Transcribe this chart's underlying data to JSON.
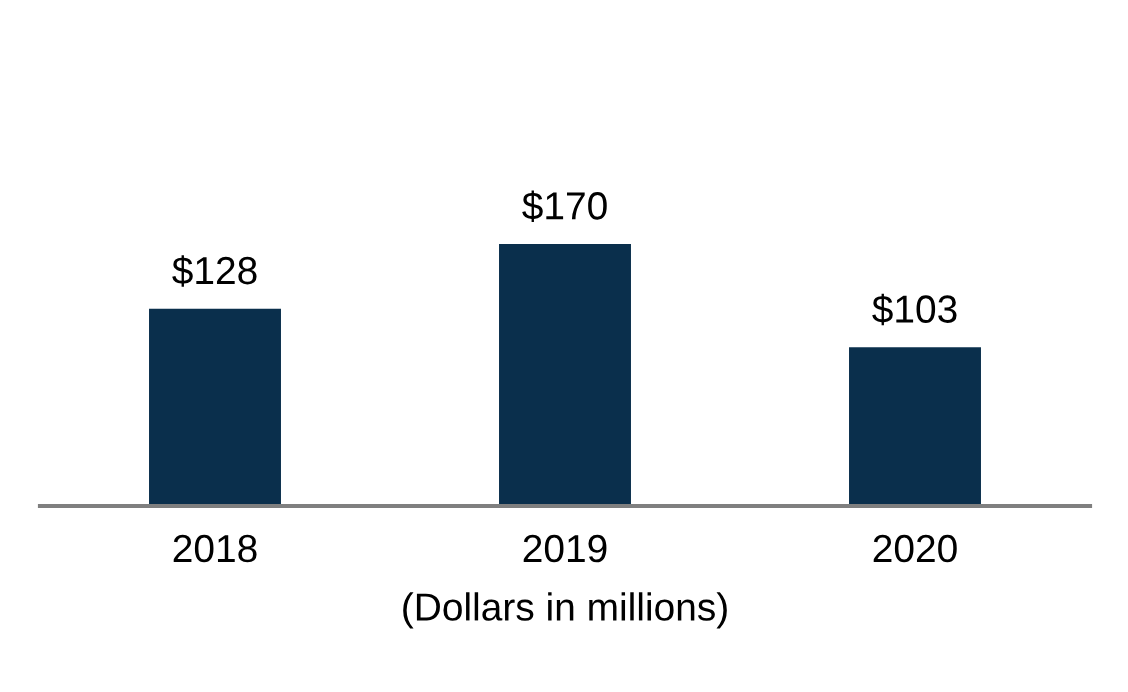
{
  "chart_data": {
    "type": "bar",
    "categories": [
      "2018",
      "2019",
      "2020"
    ],
    "values": [
      128,
      170,
      103
    ],
    "value_labels": [
      "$128",
      "$170",
      "$103"
    ],
    "color": "#0a2f4c",
    "xlabel": "(Dollars in millions)",
    "grid": false
  }
}
